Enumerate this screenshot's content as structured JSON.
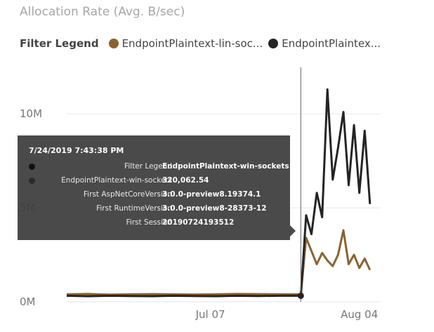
{
  "chart_data": {
    "type": "line",
    "title": "Allocation Rate (Avg. B/sec)",
    "xlabel": "",
    "ylabel": "",
    "x_ticks": [
      "Jul 07",
      "Aug 04"
    ],
    "y_ticks": [
      {
        "label": "0M",
        "value": 0
      },
      {
        "label": "5M",
        "value": 5000000
      },
      {
        "label": "10M",
        "value": 10000000
      }
    ],
    "ylim": [
      0,
      11500000
    ],
    "x_range": [
      "2019-06-10",
      "2019-08-08"
    ],
    "grid": true,
    "legend_position": "top-left",
    "hover_date": "2019-07-24",
    "series": [
      {
        "name": "EndpointPlaintext-lin-sockets",
        "color": "#8a6232",
        "x": [
          "2019-06-10",
          "2019-06-14",
          "2019-06-18",
          "2019-06-22",
          "2019-06-26",
          "2019-06-30",
          "2019-07-04",
          "2019-07-08",
          "2019-07-12",
          "2019-07-16",
          "2019-07-20",
          "2019-07-24",
          "2019-07-25",
          "2019-07-26",
          "2019-07-27",
          "2019-07-28",
          "2019-07-29",
          "2019-07-30",
          "2019-07-31",
          "2019-08-01",
          "2019-08-02",
          "2019-08-03",
          "2019-08-04",
          "2019-08-05",
          "2019-08-06"
        ],
        "values": [
          400000,
          420000,
          380000,
          400000,
          410000,
          400000,
          390000,
          400000,
          420000,
          410000,
          400000,
          400000,
          3400000,
          2700000,
          2000000,
          2600000,
          2200000,
          1900000,
          2500000,
          3800000,
          2000000,
          2500000,
          1800000,
          2300000,
          1700000
        ]
      },
      {
        "name": "EndpointPlaintext-win-sockets",
        "color": "#252423",
        "x": [
          "2019-06-10",
          "2019-06-14",
          "2019-06-18",
          "2019-06-22",
          "2019-06-26",
          "2019-06-30",
          "2019-07-04",
          "2019-07-08",
          "2019-07-12",
          "2019-07-16",
          "2019-07-20",
          "2019-07-24",
          "2019-07-25",
          "2019-07-26",
          "2019-07-27",
          "2019-07-28",
          "2019-07-29",
          "2019-07-30",
          "2019-07-31",
          "2019-08-01",
          "2019-08-02",
          "2019-08-03",
          "2019-08-04",
          "2019-08-05",
          "2019-08-06"
        ],
        "values": [
          320000,
          300000,
          320000,
          310000,
          300000,
          320000,
          310000,
          300000,
          320000,
          310000,
          320000,
          320062.54,
          4600000,
          3600000,
          5800000,
          4500000,
          11300000,
          6500000,
          8200000,
          10100000,
          6200000,
          9400000,
          5800000,
          9100000,
          5200000
        ]
      }
    ]
  },
  "legend": {
    "title": "Filter Legend",
    "items": [
      {
        "label": "EndpointPlaintext-lin-soc...",
        "color": "#8a6232"
      },
      {
        "label": "EndpointPlaintex...",
        "color": "#252423"
      }
    ]
  },
  "tooltip": {
    "title": "7/24/2019 7:43:38 PM",
    "rows": [
      {
        "key": "Filter Legend",
        "value": "EndpointPlaintext-win-sockets",
        "dot": "#111111"
      },
      {
        "key": "EndpointPlaintext-win-sockets",
        "value": "320,062.54",
        "dot": "#2b2b2b"
      },
      {
        "key": "First AspNetCoreVersion",
        "value": "3.0.0-preview8.19374.1"
      },
      {
        "key": "First RuntimeVersion",
        "value": "3.0.0-preview8-28373-12"
      },
      {
        "key": "First Session",
        "value": "20190724193512"
      }
    ]
  }
}
